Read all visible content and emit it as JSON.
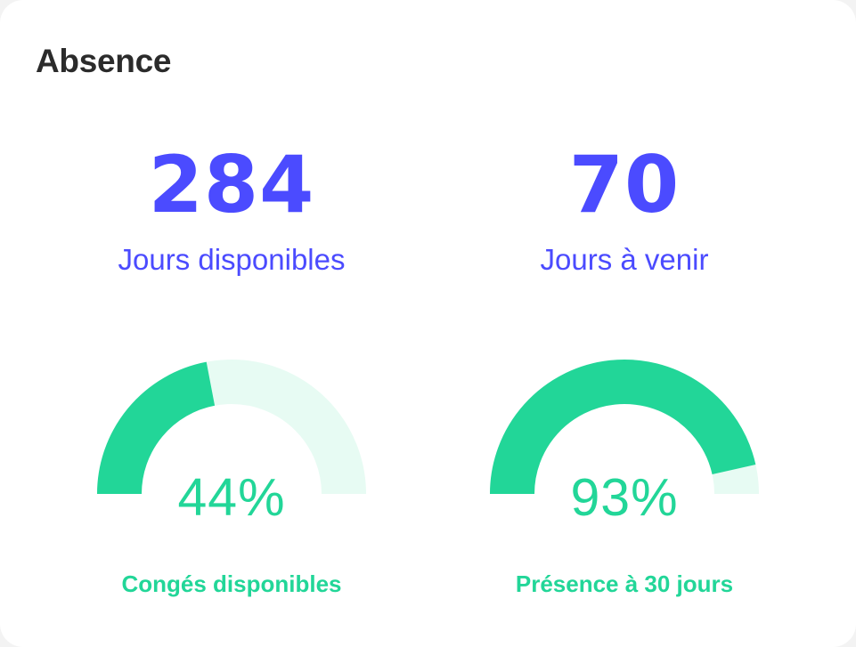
{
  "card": {
    "title": "Absence"
  },
  "stats": [
    {
      "value": "284",
      "label": "Jours disponibles"
    },
    {
      "value": "70",
      "label": "Jours à venir"
    }
  ],
  "gauges": [
    {
      "percent_text": "44%",
      "fraction": 0.44,
      "caption": "Congés disponibles"
    },
    {
      "percent_text": "93%",
      "fraction": 0.93,
      "caption": "Présence à 30 jours"
    }
  ],
  "colors": {
    "accent_blue": "#4b4bff",
    "gauge_fill": "#22d698",
    "gauge_track": "#e7fbf3",
    "title": "#2b2b2b"
  }
}
